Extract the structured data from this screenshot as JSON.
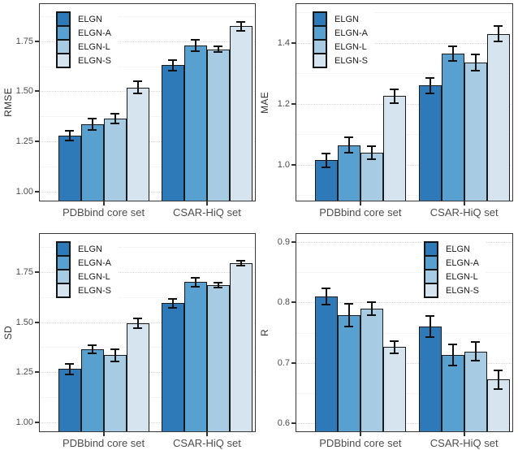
{
  "figure": {
    "description": "Ablation study bar charts comparing ELGN model variants on two benchmark sets",
    "categories": [
      "PDBbind core set",
      "CSAR-HiQ set"
    ],
    "series_colors": {
      "ELGN": "#2e7ab8",
      "ELGN-A": "#57a0cf",
      "ELGN-L": "#a7cbe2",
      "ELGN-S": "#d6e4f0"
    },
    "bar_border_color": "#1a1a1a",
    "error_bar_color": "#111111",
    "panel_border_color": "#383838"
  },
  "chart_data": [
    {
      "type": "bar",
      "ylabel": "RMSE",
      "categories": [
        "PDBbind core set",
        "CSAR-HiQ set"
      ],
      "series": [
        {
          "name": "ELGN",
          "values": [
            1.28,
            1.63
          ],
          "errors": [
            0.025,
            0.026
          ]
        },
        {
          "name": "ELGN-A",
          "values": [
            1.335,
            1.73
          ],
          "errors": [
            0.028,
            0.028
          ]
        },
        {
          "name": "ELGN-L",
          "values": [
            1.365,
            1.71
          ],
          "errors": [
            0.025,
            0.015
          ]
        },
        {
          "name": "ELGN-S",
          "values": [
            1.52,
            1.825
          ],
          "errors": [
            0.032,
            0.022
          ]
        }
      ],
      "yticks": [
        1.0,
        1.25,
        1.5,
        1.75
      ],
      "ytick_labels": [
        "1.00",
        "1.25",
        "1.50",
        "1.75"
      ],
      "ylim": [
        0.95,
        1.94
      ],
      "grid": true,
      "legend_position": "top-left"
    },
    {
      "type": "bar",
      "ylabel": "MAE",
      "categories": [
        "PDBbind core set",
        "CSAR-HiQ set"
      ],
      "series": [
        {
          "name": "ELGN",
          "values": [
            1.015,
            1.26
          ],
          "errors": [
            0.022,
            0.025
          ]
        },
        {
          "name": "ELGN-A",
          "values": [
            1.065,
            1.365
          ],
          "errors": [
            0.025,
            0.025
          ]
        },
        {
          "name": "ELGN-L",
          "values": [
            1.04,
            1.335
          ],
          "errors": [
            0.022,
            0.027
          ]
        },
        {
          "name": "ELGN-S",
          "values": [
            1.225,
            1.43
          ],
          "errors": [
            0.022,
            0.025
          ]
        }
      ],
      "yticks": [
        1.0,
        1.2,
        1.4
      ],
      "ytick_labels": [
        "1.0",
        "1.2",
        "1.4"
      ],
      "ylim": [
        0.88,
        1.53
      ],
      "grid": true,
      "legend_position": "top-left"
    },
    {
      "type": "bar",
      "ylabel": "SD",
      "categories": [
        "PDBbind core set",
        "CSAR-HiQ set"
      ],
      "series": [
        {
          "name": "ELGN",
          "values": [
            1.265,
            1.595
          ],
          "errors": [
            0.027,
            0.022
          ]
        },
        {
          "name": "ELGN-A",
          "values": [
            1.365,
            1.7
          ],
          "errors": [
            0.02,
            0.022
          ]
        },
        {
          "name": "ELGN-L",
          "values": [
            1.335,
            1.685
          ],
          "errors": [
            0.03,
            0.012
          ]
        },
        {
          "name": "ELGN-S",
          "values": [
            1.495,
            1.795
          ],
          "errors": [
            0.025,
            0.012
          ]
        }
      ],
      "yticks": [
        1.0,
        1.25,
        1.5,
        1.75
      ],
      "ytick_labels": [
        "1.00",
        "1.25",
        "1.50",
        "1.75"
      ],
      "ylim": [
        0.95,
        1.945
      ],
      "grid": true,
      "legend_position": "top-left"
    },
    {
      "type": "bar",
      "ylabel": "R",
      "categories": [
        "PDBbind core set",
        "CSAR-HiQ set"
      ],
      "series": [
        {
          "name": "ELGN",
          "values": [
            0.81,
            0.76
          ],
          "errors": [
            0.014,
            0.018
          ]
        },
        {
          "name": "ELGN-A",
          "values": [
            0.779,
            0.713
          ],
          "errors": [
            0.019,
            0.018
          ]
        },
        {
          "name": "ELGN-L",
          "values": [
            0.79,
            0.719
          ],
          "errors": [
            0.011,
            0.015
          ]
        },
        {
          "name": "ELGN-S",
          "values": [
            0.726,
            0.672
          ],
          "errors": [
            0.01,
            0.016
          ]
        }
      ],
      "yticks": [
        0.6,
        0.7,
        0.8,
        0.9
      ],
      "ytick_labels": [
        "0.6",
        "0.7",
        "0.8",
        "0.9"
      ],
      "ylim": [
        0.585,
        0.915
      ],
      "grid": true,
      "legend_position": "top-right"
    }
  ]
}
